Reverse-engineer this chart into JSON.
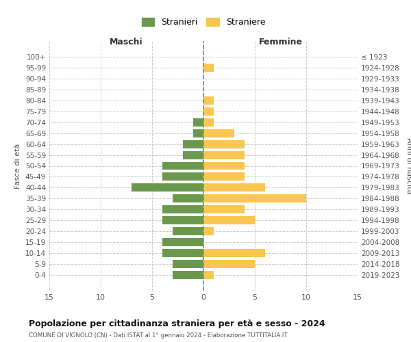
{
  "age_groups": [
    "100+",
    "95-99",
    "90-94",
    "85-89",
    "80-84",
    "75-79",
    "70-74",
    "65-69",
    "60-64",
    "55-59",
    "50-54",
    "45-49",
    "40-44",
    "35-39",
    "30-34",
    "25-29",
    "20-24",
    "15-19",
    "10-14",
    "5-9",
    "0-4"
  ],
  "birth_years": [
    "≤ 1923",
    "1924-1928",
    "1929-1933",
    "1934-1938",
    "1939-1943",
    "1944-1948",
    "1949-1953",
    "1954-1958",
    "1959-1963",
    "1964-1968",
    "1969-1973",
    "1974-1978",
    "1979-1983",
    "1984-1988",
    "1989-1993",
    "1994-1998",
    "1999-2003",
    "2004-2008",
    "2009-2013",
    "2014-2018",
    "2019-2023"
  ],
  "maschi": [
    0,
    0,
    0,
    0,
    0,
    0,
    1,
    1,
    2,
    2,
    4,
    4,
    7,
    3,
    4,
    4,
    3,
    4,
    4,
    3,
    3
  ],
  "femmine": [
    0,
    1,
    0,
    0,
    1,
    1,
    1,
    3,
    4,
    4,
    4,
    4,
    6,
    10,
    4,
    5,
    1,
    0,
    6,
    5,
    1
  ],
  "male_color": "#6a994e",
  "female_color": "#f9c74f",
  "legend_male": "Stranieri",
  "legend_female": "Straniere",
  "title": "Popolazione per cittadinanza straniera per età e sesso - 2024",
  "subtitle": "COMUNE DI VIGNOLO (CN) - Dati ISTAT al 1° gennaio 2024 - Elaborazione TUTTITALIA.IT",
  "ylabel_left": "Fasce di età",
  "ylabel_right": "Anni di nascita",
  "xlabel_left": "Maschi",
  "xlabel_right": "Femmine",
  "xlim": 15,
  "background_color": "#ffffff",
  "grid_color": "#cccccc"
}
